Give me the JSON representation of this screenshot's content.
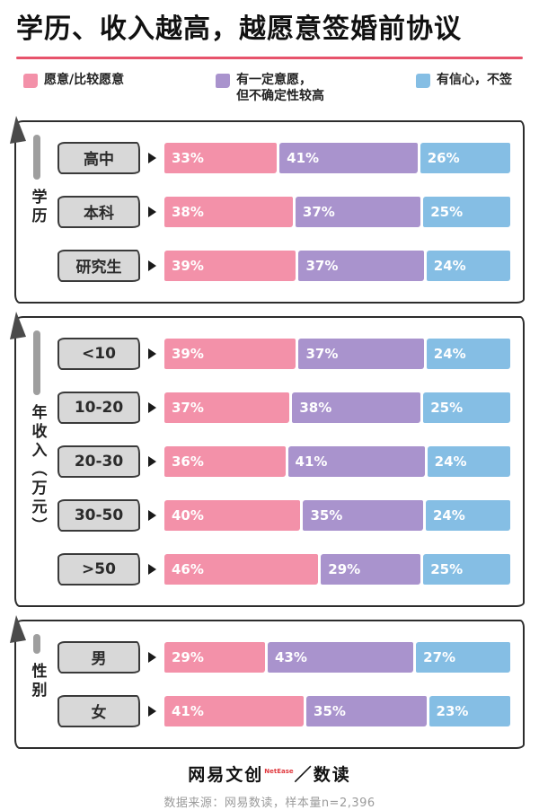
{
  "title": "学历、收入越高，越愿意签婚前协议",
  "accent_underline_color": "#e7536b",
  "legend": [
    {
      "label": "愿意/比较愿意",
      "color": "#f391a9"
    },
    {
      "label": "有一定意愿，\n但不确定性较高",
      "color": "#a993cd"
    },
    {
      "label": "有信心，不签",
      "color": "#85bee4"
    }
  ],
  "chart_data": {
    "type": "bar",
    "orientation": "horizontal-stacked",
    "unit": "%",
    "series_names": [
      "愿意/比较愿意",
      "有一定意愿，但不确定性较高",
      "有信心，不签"
    ],
    "series_colors": [
      "#f391a9",
      "#a993cd",
      "#85bee4"
    ],
    "xlim": [
      0,
      100
    ],
    "groups": [
      {
        "name": "学历",
        "rows": [
          {
            "category": "高中",
            "values": [
              33,
              41,
              26
            ]
          },
          {
            "category": "本科",
            "values": [
              38,
              37,
              25
            ]
          },
          {
            "category": "研究生",
            "values": [
              39,
              37,
              24
            ]
          }
        ]
      },
      {
        "name": "年收入（万元）",
        "rows": [
          {
            "category": "<10",
            "values": [
              39,
              37,
              24
            ]
          },
          {
            "category": "10-20",
            "values": [
              37,
              38,
              25
            ]
          },
          {
            "category": "20-30",
            "values": [
              36,
              41,
              24
            ]
          },
          {
            "category": "30-50",
            "values": [
              40,
              35,
              24
            ]
          },
          {
            "category": ">50",
            "values": [
              46,
              29,
              25
            ]
          }
        ]
      },
      {
        "name": "性别",
        "rows": [
          {
            "category": "男",
            "values": [
              29,
              43,
              27
            ]
          },
          {
            "category": "女",
            "values": [
              41,
              35,
              23
            ]
          }
        ]
      }
    ]
  },
  "footer": {
    "brand": "网易文创",
    "brand_en": "NetEase",
    "slash": "／",
    "series_brand": "数读",
    "source": "数据来源：网易数读，样本量n=2,396"
  }
}
